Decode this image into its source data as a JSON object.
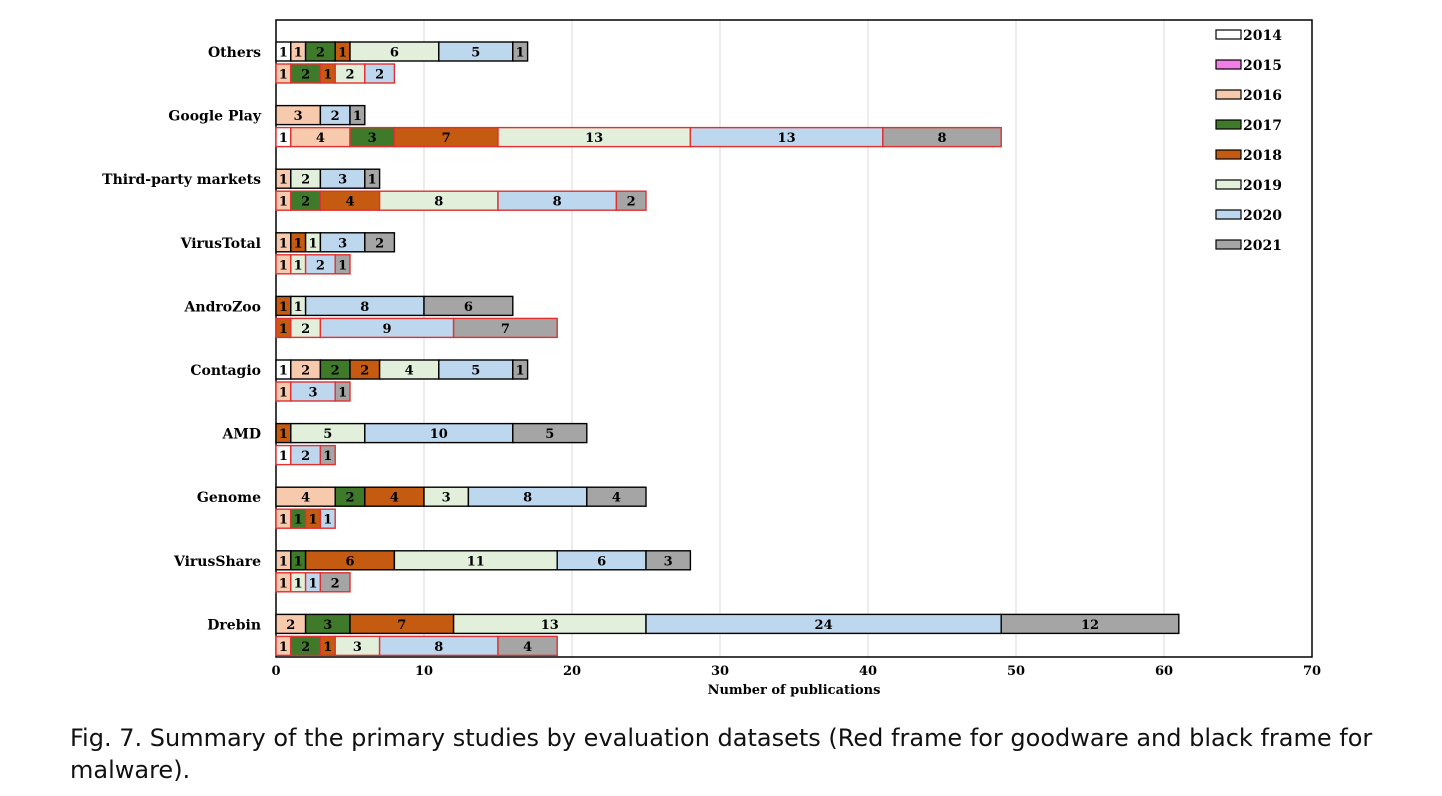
{
  "caption": "Fig. 7.  Summary of the primary studies by evaluation datasets (Red frame for goodware and black frame for malware).",
  "chart_data": {
    "type": "bar",
    "orientation": "horizontal",
    "stacked": true,
    "xlabel": "Number of publications",
    "xlim": [
      0,
      70
    ],
    "xticks": [
      0,
      10,
      20,
      30,
      40,
      50,
      60,
      70
    ],
    "grid": true,
    "legend_position": "top-right",
    "categories": [
      "Others",
      "Google Play",
      "Third-party markets",
      "VirusTotal",
      "AndroZoo",
      "Contagio",
      "AMD",
      "Genome",
      "VirusShare",
      "Drebin"
    ],
    "years": [
      "2014",
      "2015",
      "2016",
      "2017",
      "2018",
      "2019",
      "2020",
      "2021"
    ],
    "colors": [
      "#ffffff",
      "#f07ee6",
      "#f7c9ad",
      "#3e7a2a",
      "#c55a11",
      "#e2efda",
      "#bdd7ee",
      "#a5a5a5"
    ],
    "malware_frame_color": "#000000",
    "goodware_frame_color": "#e03030",
    "malware": [
      [
        1,
        0,
        1,
        2,
        1,
        6,
        5,
        1
      ],
      [
        0,
        0,
        3,
        0,
        0,
        0,
        2,
        1
      ],
      [
        0,
        0,
        1,
        0,
        0,
        2,
        3,
        1
      ],
      [
        0,
        0,
        1,
        0,
        1,
        1,
        3,
        2
      ],
      [
        0,
        0,
        0,
        0,
        1,
        1,
        8,
        6
      ],
      [
        1,
        0,
        2,
        2,
        2,
        4,
        5,
        1
      ],
      [
        0,
        0,
        0,
        0,
        1,
        5,
        10,
        5
      ],
      [
        0,
        0,
        4,
        2,
        4,
        3,
        8,
        4
      ],
      [
        0,
        0,
        1,
        1,
        6,
        11,
        6,
        3
      ],
      [
        0,
        0,
        2,
        3,
        7,
        13,
        24,
        12
      ]
    ],
    "goodware": [
      [
        0,
        0,
        1,
        2,
        1,
        2,
        2,
        0
      ],
      [
        1,
        0,
        4,
        3,
        7,
        13,
        13,
        8
      ],
      [
        0,
        0,
        1,
        2,
        4,
        8,
        8,
        2
      ],
      [
        0,
        0,
        1,
        0,
        0,
        1,
        2,
        1
      ],
      [
        0,
        0,
        0,
        0,
        1,
        2,
        9,
        7
      ],
      [
        0,
        0,
        1,
        0,
        0,
        0,
        3,
        1
      ],
      [
        1,
        0,
        0,
        0,
        0,
        0,
        2,
        1
      ],
      [
        0,
        0,
        1,
        1,
        1,
        0,
        1,
        0
      ],
      [
        0,
        0,
        1,
        0,
        0,
        1,
        1,
        2
      ],
      [
        0,
        0,
        1,
        2,
        1,
        3,
        8,
        4
      ]
    ]
  }
}
